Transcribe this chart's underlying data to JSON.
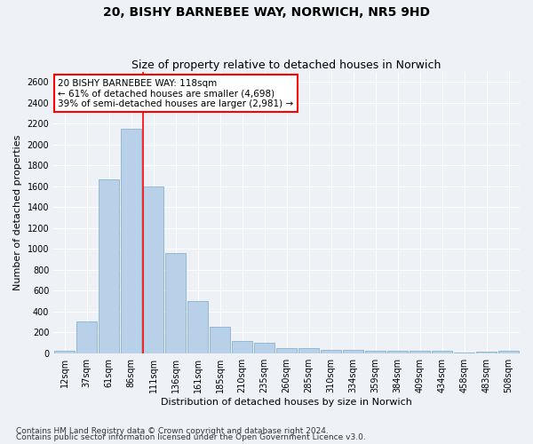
{
  "title": "20, BISHY BARNEBEE WAY, NORWICH, NR5 9HD",
  "subtitle": "Size of property relative to detached houses in Norwich",
  "xlabel": "Distribution of detached houses by size in Norwich",
  "ylabel": "Number of detached properties",
  "categories": [
    "12sqm",
    "37sqm",
    "61sqm",
    "86sqm",
    "111sqm",
    "136sqm",
    "161sqm",
    "185sqm",
    "210sqm",
    "235sqm",
    "260sqm",
    "285sqm",
    "310sqm",
    "334sqm",
    "359sqm",
    "384sqm",
    "409sqm",
    "434sqm",
    "458sqm",
    "483sqm",
    "508sqm"
  ],
  "values": [
    25,
    300,
    1670,
    2150,
    1600,
    960,
    500,
    250,
    120,
    100,
    50,
    50,
    35,
    35,
    20,
    25,
    20,
    25,
    5,
    15,
    25
  ],
  "bar_color": "#b8d0e8",
  "bar_edge_color": "#7aaac8",
  "background_color": "#eef2f7",
  "grid_color": "#ffffff",
  "vline_color": "red",
  "annotation_text": "20 BISHY BARNEBEE WAY: 118sqm\n← 61% of detached houses are smaller (4,698)\n39% of semi-detached houses are larger (2,981) →",
  "annotation_box_color": "white",
  "annotation_box_edge": "red",
  "ylim": [
    0,
    2700
  ],
  "yticks": [
    0,
    200,
    400,
    600,
    800,
    1000,
    1200,
    1400,
    1600,
    1800,
    2000,
    2200,
    2400,
    2600
  ],
  "footnote1": "Contains HM Land Registry data © Crown copyright and database right 2024.",
  "footnote2": "Contains public sector information licensed under the Open Government Licence v3.0.",
  "title_fontsize": 10,
  "subtitle_fontsize": 9,
  "axis_label_fontsize": 8,
  "tick_fontsize": 7,
  "annotation_fontsize": 7.5,
  "footnote_fontsize": 6.5
}
